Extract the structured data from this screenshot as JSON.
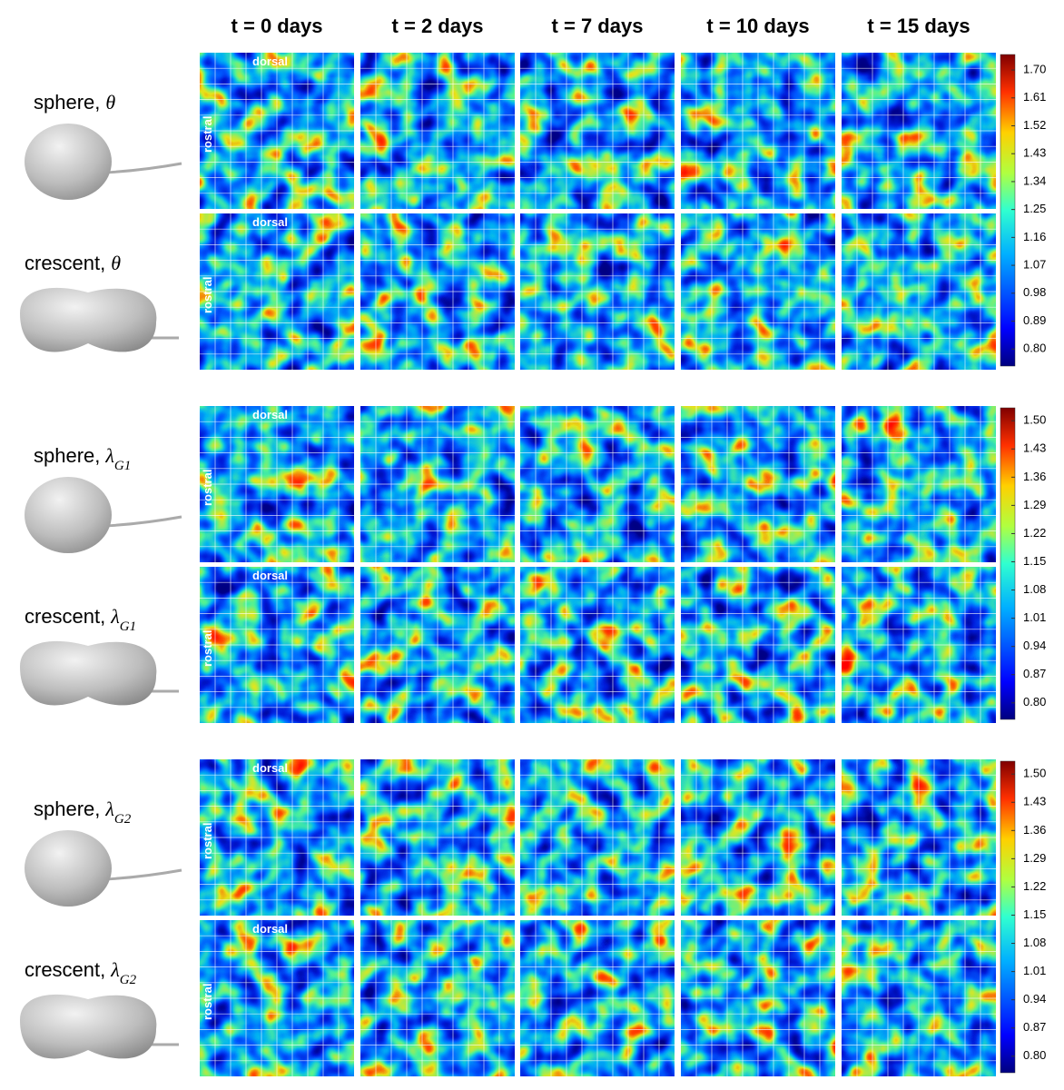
{
  "columns": [
    "t = 0 days",
    "t = 2 days",
    "t = 7 days",
    "t = 10 days",
    "t = 15 days"
  ],
  "orientation": {
    "top": "dorsal",
    "left": "rostral"
  },
  "panels": [
    {
      "rows": [
        {
          "name": "sphere,",
          "symbol": "θ"
        },
        {
          "name": "crescent,",
          "symbol": "θ"
        }
      ],
      "colorbar": {
        "clim": [
          0.745,
          1.75
        ],
        "ticks": [
          {
            "value": 0.8,
            "label": "0.80"
          },
          {
            "value": 0.89,
            "label": "0.89"
          },
          {
            "value": 0.98,
            "label": "0.98"
          },
          {
            "value": 1.07,
            "label": "1.07"
          },
          {
            "value": 1.16,
            "label": "1.16"
          },
          {
            "value": 1.25,
            "label": "1.25"
          },
          {
            "value": 1.34,
            "label": "1.34"
          },
          {
            "value": 1.43,
            "label": "1.43"
          },
          {
            "value": 1.52,
            "label": "1.52"
          },
          {
            "value": 1.61,
            "label": "1.61"
          },
          {
            "value": 1.7,
            "label": "1.70"
          }
        ]
      }
    },
    {
      "rows": [
        {
          "name": "sphere,",
          "symbol": "λ",
          "sub": "G1"
        },
        {
          "name": "crescent,",
          "symbol": "λ",
          "sub": "G1"
        }
      ],
      "colorbar": {
        "clim": [
          0.759,
          1.532
        ],
        "ticks": [
          {
            "value": 0.8,
            "label": "0.80"
          },
          {
            "value": 0.87,
            "label": "0.87"
          },
          {
            "value": 0.94,
            "label": "0.94"
          },
          {
            "value": 1.01,
            "label": "1.01"
          },
          {
            "value": 1.08,
            "label": "1.08"
          },
          {
            "value": 1.15,
            "label": "1.15"
          },
          {
            "value": 1.22,
            "label": "1.22"
          },
          {
            "value": 1.29,
            "label": "1.29"
          },
          {
            "value": 1.36,
            "label": "1.36"
          },
          {
            "value": 1.43,
            "label": "1.43"
          },
          {
            "value": 1.5,
            "label": "1.50"
          }
        ]
      }
    },
    {
      "rows": [
        {
          "name": "sphere,",
          "symbol": "λ",
          "sub": "G2"
        },
        {
          "name": "crescent,",
          "symbol": "λ",
          "sub": "G2"
        }
      ],
      "colorbar": {
        "clim": [
          0.759,
          1.532
        ],
        "ticks": [
          {
            "value": 0.8,
            "label": "0.80"
          },
          {
            "value": 0.87,
            "label": "0.87"
          },
          {
            "value": 0.94,
            "label": "0.94"
          },
          {
            "value": 1.01,
            "label": "1.01"
          },
          {
            "value": 1.08,
            "label": "1.08"
          },
          {
            "value": 1.15,
            "label": "1.15"
          },
          {
            "value": 1.22,
            "label": "1.22"
          },
          {
            "value": 1.29,
            "label": "1.29"
          },
          {
            "value": 1.36,
            "label": "1.36"
          },
          {
            "value": 1.43,
            "label": "1.43"
          },
          {
            "value": 1.5,
            "label": "1.50"
          }
        ]
      }
    }
  ]
}
